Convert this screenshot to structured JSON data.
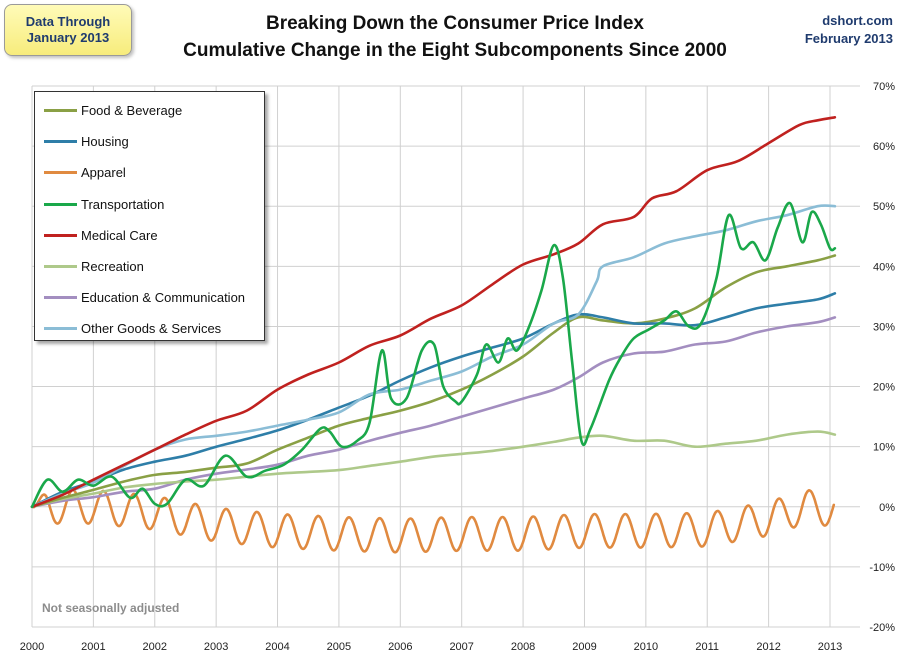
{
  "note": {
    "line1": "Data Through",
    "line2": "January 2013"
  },
  "title": {
    "line1": "Breaking Down the Consumer Price Index",
    "line2": "Cumulative Change in the Eight Subcomponents Since 2000"
  },
  "credit": {
    "line1": "dshort.com",
    "line2": "February 2013"
  },
  "footnote": "Not seasonally adjusted",
  "chart_data": {
    "type": "line",
    "x_ticks": [
      "2000",
      "2001",
      "2002",
      "2003",
      "2004",
      "2005",
      "2006",
      "2007",
      "2008",
      "2009",
      "2010",
      "2011",
      "2012",
      "2013"
    ],
    "xlim": [
      2000,
      2013.1
    ],
    "ylim": [
      -20,
      70
    ],
    "y_ticks": [
      "-20%",
      "-10%",
      "0%",
      "10%",
      "20%",
      "30%",
      "40%",
      "50%",
      "60%",
      "70%"
    ],
    "grid": true,
    "legend_position": "top-left",
    "series": [
      {
        "name": "Food & Beverage",
        "color": "#8aa045",
        "points": [
          [
            2000,
            0
          ],
          [
            2000.5,
            1.5
          ],
          [
            2001,
            2.8
          ],
          [
            2001.5,
            4.2
          ],
          [
            2002,
            5.3
          ],
          [
            2002.5,
            5.8
          ],
          [
            2003,
            6.5
          ],
          [
            2003.5,
            7.2
          ],
          [
            2004,
            9.5
          ],
          [
            2004.5,
            11.5
          ],
          [
            2005,
            13.5
          ],
          [
            2005.5,
            14.8
          ],
          [
            2006,
            16
          ],
          [
            2006.5,
            17.5
          ],
          [
            2007,
            19.5
          ],
          [
            2007.5,
            22
          ],
          [
            2008,
            25
          ],
          [
            2008.5,
            29
          ],
          [
            2008.9,
            31.5
          ],
          [
            2009.3,
            31
          ],
          [
            2009.8,
            30.5
          ],
          [
            2010.3,
            31.3
          ],
          [
            2010.8,
            33
          ],
          [
            2011.3,
            36.5
          ],
          [
            2011.8,
            39
          ],
          [
            2012.3,
            40
          ],
          [
            2012.8,
            41
          ],
          [
            2013.08,
            41.8
          ]
        ]
      },
      {
        "name": "Housing",
        "color": "#2e7ea8",
        "points": [
          [
            2000,
            0
          ],
          [
            2000.5,
            2.5
          ],
          [
            2001,
            4.2
          ],
          [
            2001.5,
            6.2
          ],
          [
            2002,
            7.5
          ],
          [
            2002.5,
            8.5
          ],
          [
            2003,
            10
          ],
          [
            2003.5,
            11.3
          ],
          [
            2004,
            12.7
          ],
          [
            2004.5,
            14.5
          ],
          [
            2005,
            16.5
          ],
          [
            2005.5,
            18.5
          ],
          [
            2006,
            21
          ],
          [
            2006.5,
            23.2
          ],
          [
            2007,
            25
          ],
          [
            2007.5,
            26.5
          ],
          [
            2008,
            28
          ],
          [
            2008.5,
            30.5
          ],
          [
            2008.9,
            32
          ],
          [
            2009.3,
            31.5
          ],
          [
            2009.8,
            30.5
          ],
          [
            2010.3,
            30.5
          ],
          [
            2010.8,
            30.2
          ],
          [
            2011.3,
            31.5
          ],
          [
            2011.8,
            33
          ],
          [
            2012.3,
            33.8
          ],
          [
            2012.8,
            34.5
          ],
          [
            2013.08,
            35.5
          ]
        ]
      },
      {
        "name": "Apparel",
        "color": "#e08a40",
        "osc": true,
        "points": [
          [
            2000,
            0
          ],
          [
            2001,
            0
          ],
          [
            2002,
            -1
          ],
          [
            2003,
            -3
          ],
          [
            2004,
            -4
          ],
          [
            2005,
            -4.5
          ],
          [
            2006,
            -4.8
          ],
          [
            2007,
            -4.5
          ],
          [
            2008,
            -4.5
          ],
          [
            2009,
            -4
          ],
          [
            2010,
            -4
          ],
          [
            2011,
            -3.8
          ],
          [
            2012,
            -2
          ],
          [
            2012.6,
            0
          ],
          [
            2013.08,
            -0.5
          ]
        ]
      },
      {
        "name": "Transportation",
        "color": "#1aa84a",
        "points": [
          [
            2000,
            0
          ],
          [
            2000.25,
            4.5
          ],
          [
            2000.5,
            2.5
          ],
          [
            2000.75,
            4.5
          ],
          [
            2001,
            3.5
          ],
          [
            2001.3,
            5
          ],
          [
            2001.6,
            1.5
          ],
          [
            2001.8,
            3
          ],
          [
            2002,
            0.5
          ],
          [
            2002.2,
            0.5
          ],
          [
            2002.5,
            4.5
          ],
          [
            2002.8,
            3.5
          ],
          [
            2003.15,
            8.5
          ],
          [
            2003.5,
            5
          ],
          [
            2003.8,
            6
          ],
          [
            2004.1,
            7
          ],
          [
            2004.4,
            9.5
          ],
          [
            2004.7,
            13
          ],
          [
            2004.85,
            12.5
          ],
          [
            2005.05,
            10
          ],
          [
            2005.3,
            11
          ],
          [
            2005.5,
            14
          ],
          [
            2005.7,
            26
          ],
          [
            2005.85,
            18
          ],
          [
            2006.1,
            18
          ],
          [
            2006.35,
            26
          ],
          [
            2006.55,
            27
          ],
          [
            2006.7,
            20
          ],
          [
            2006.9,
            17.5
          ],
          [
            2007,
            17.5
          ],
          [
            2007.25,
            22
          ],
          [
            2007.4,
            27
          ],
          [
            2007.6,
            24
          ],
          [
            2007.75,
            28
          ],
          [
            2007.9,
            26
          ],
          [
            2008.1,
            30
          ],
          [
            2008.3,
            36
          ],
          [
            2008.5,
            43.5
          ],
          [
            2008.65,
            38
          ],
          [
            2008.8,
            24
          ],
          [
            2008.95,
            11
          ],
          [
            2009.1,
            13
          ],
          [
            2009.4,
            21
          ],
          [
            2009.6,
            25
          ],
          [
            2009.8,
            28
          ],
          [
            2010.05,
            29.5
          ],
          [
            2010.3,
            31
          ],
          [
            2010.5,
            32.5
          ],
          [
            2010.7,
            30
          ],
          [
            2010.9,
            30.5
          ],
          [
            2011.15,
            38
          ],
          [
            2011.35,
            48.5
          ],
          [
            2011.55,
            43
          ],
          [
            2011.75,
            44
          ],
          [
            2011.95,
            41
          ],
          [
            2012.15,
            46.5
          ],
          [
            2012.35,
            50.5
          ],
          [
            2012.55,
            44
          ],
          [
            2012.7,
            49
          ],
          [
            2012.85,
            47
          ],
          [
            2013,
            43
          ],
          [
            2013.08,
            43
          ]
        ]
      },
      {
        "name": "Medical Care",
        "color": "#c0211f",
        "points": [
          [
            2000,
            0
          ],
          [
            2000.5,
            2
          ],
          [
            2001,
            4.5
          ],
          [
            2001.5,
            7
          ],
          [
            2002,
            9.5
          ],
          [
            2002.5,
            12
          ],
          [
            2003,
            14.3
          ],
          [
            2003.5,
            16
          ],
          [
            2004,
            19.5
          ],
          [
            2004.5,
            22
          ],
          [
            2005,
            24
          ],
          [
            2005.5,
            26.8
          ],
          [
            2006,
            28.5
          ],
          [
            2006.5,
            31.3
          ],
          [
            2007,
            33.5
          ],
          [
            2007.5,
            37
          ],
          [
            2008,
            40.3
          ],
          [
            2008.5,
            42
          ],
          [
            2008.9,
            43.8
          ],
          [
            2009.3,
            47
          ],
          [
            2009.8,
            48.2
          ],
          [
            2010.1,
            51.3
          ],
          [
            2010.5,
            52.5
          ],
          [
            2011,
            56
          ],
          [
            2011.5,
            57.5
          ],
          [
            2012,
            60.5
          ],
          [
            2012.5,
            63.5
          ],
          [
            2012.8,
            64.3
          ],
          [
            2013.08,
            64.8
          ]
        ]
      },
      {
        "name": "Recreation",
        "color": "#aec98a",
        "points": [
          [
            2000,
            0
          ],
          [
            2000.5,
            1.3
          ],
          [
            2001,
            2.2
          ],
          [
            2001.5,
            3.2
          ],
          [
            2002,
            3.8
          ],
          [
            2002.5,
            4.2
          ],
          [
            2003,
            4.5
          ],
          [
            2003.5,
            5
          ],
          [
            2004,
            5.5
          ],
          [
            2004.5,
            5.8
          ],
          [
            2005,
            6.1
          ],
          [
            2005.5,
            6.8
          ],
          [
            2006,
            7.5
          ],
          [
            2006.5,
            8.3
          ],
          [
            2007,
            8.8
          ],
          [
            2007.5,
            9.3
          ],
          [
            2008,
            10
          ],
          [
            2008.5,
            10.8
          ],
          [
            2008.9,
            11.5
          ],
          [
            2009.3,
            11.8
          ],
          [
            2009.8,
            11
          ],
          [
            2010.3,
            11
          ],
          [
            2010.8,
            10
          ],
          [
            2011.3,
            10.5
          ],
          [
            2011.8,
            11
          ],
          [
            2012.3,
            12
          ],
          [
            2012.8,
            12.5
          ],
          [
            2013.08,
            12
          ]
        ]
      },
      {
        "name": "Education & Communication",
        "color": "#a38ec0",
        "points": [
          [
            2000,
            0
          ],
          [
            2000.5,
            1
          ],
          [
            2001,
            1.6
          ],
          [
            2001.5,
            2.5
          ],
          [
            2002,
            3
          ],
          [
            2002.5,
            4.5
          ],
          [
            2003,
            5.5
          ],
          [
            2003.5,
            6.2
          ],
          [
            2004,
            7
          ],
          [
            2004.5,
            8.5
          ],
          [
            2005,
            9.5
          ],
          [
            2005.5,
            11
          ],
          [
            2006,
            12.3
          ],
          [
            2006.5,
            13.5
          ],
          [
            2007,
            15
          ],
          [
            2007.5,
            16.5
          ],
          [
            2008,
            18
          ],
          [
            2008.5,
            19.5
          ],
          [
            2008.9,
            21.5
          ],
          [
            2009.3,
            24
          ],
          [
            2009.8,
            25.5
          ],
          [
            2010.3,
            25.8
          ],
          [
            2010.8,
            27
          ],
          [
            2011.3,
            27.5
          ],
          [
            2011.8,
            29
          ],
          [
            2012.3,
            30
          ],
          [
            2012.8,
            30.7
          ],
          [
            2013.08,
            31.5
          ]
        ]
      },
      {
        "name": "Other Goods & Services",
        "color": "#8bbdd6",
        "points": [
          [
            2000,
            0
          ],
          [
            2000.5,
            2.2
          ],
          [
            2001,
            4
          ],
          [
            2001.5,
            6.8
          ],
          [
            2002,
            9.5
          ],
          [
            2002.5,
            11.2
          ],
          [
            2003,
            11.8
          ],
          [
            2003.5,
            12.5
          ],
          [
            2004,
            13.5
          ],
          [
            2004.5,
            14.5
          ],
          [
            2005,
            15.7
          ],
          [
            2005.5,
            18.7
          ],
          [
            2006,
            19.5
          ],
          [
            2006.5,
            21
          ],
          [
            2007,
            22.5
          ],
          [
            2007.5,
            25
          ],
          [
            2008,
            27
          ],
          [
            2008.5,
            30.5
          ],
          [
            2008.9,
            32
          ],
          [
            2009.2,
            37.5
          ],
          [
            2009.3,
            40
          ],
          [
            2009.8,
            41.5
          ],
          [
            2010.3,
            43.8
          ],
          [
            2010.8,
            45
          ],
          [
            2011.3,
            46
          ],
          [
            2011.8,
            47.5
          ],
          [
            2012.3,
            48.5
          ],
          [
            2012.8,
            50
          ],
          [
            2013.08,
            50
          ]
        ]
      }
    ]
  }
}
